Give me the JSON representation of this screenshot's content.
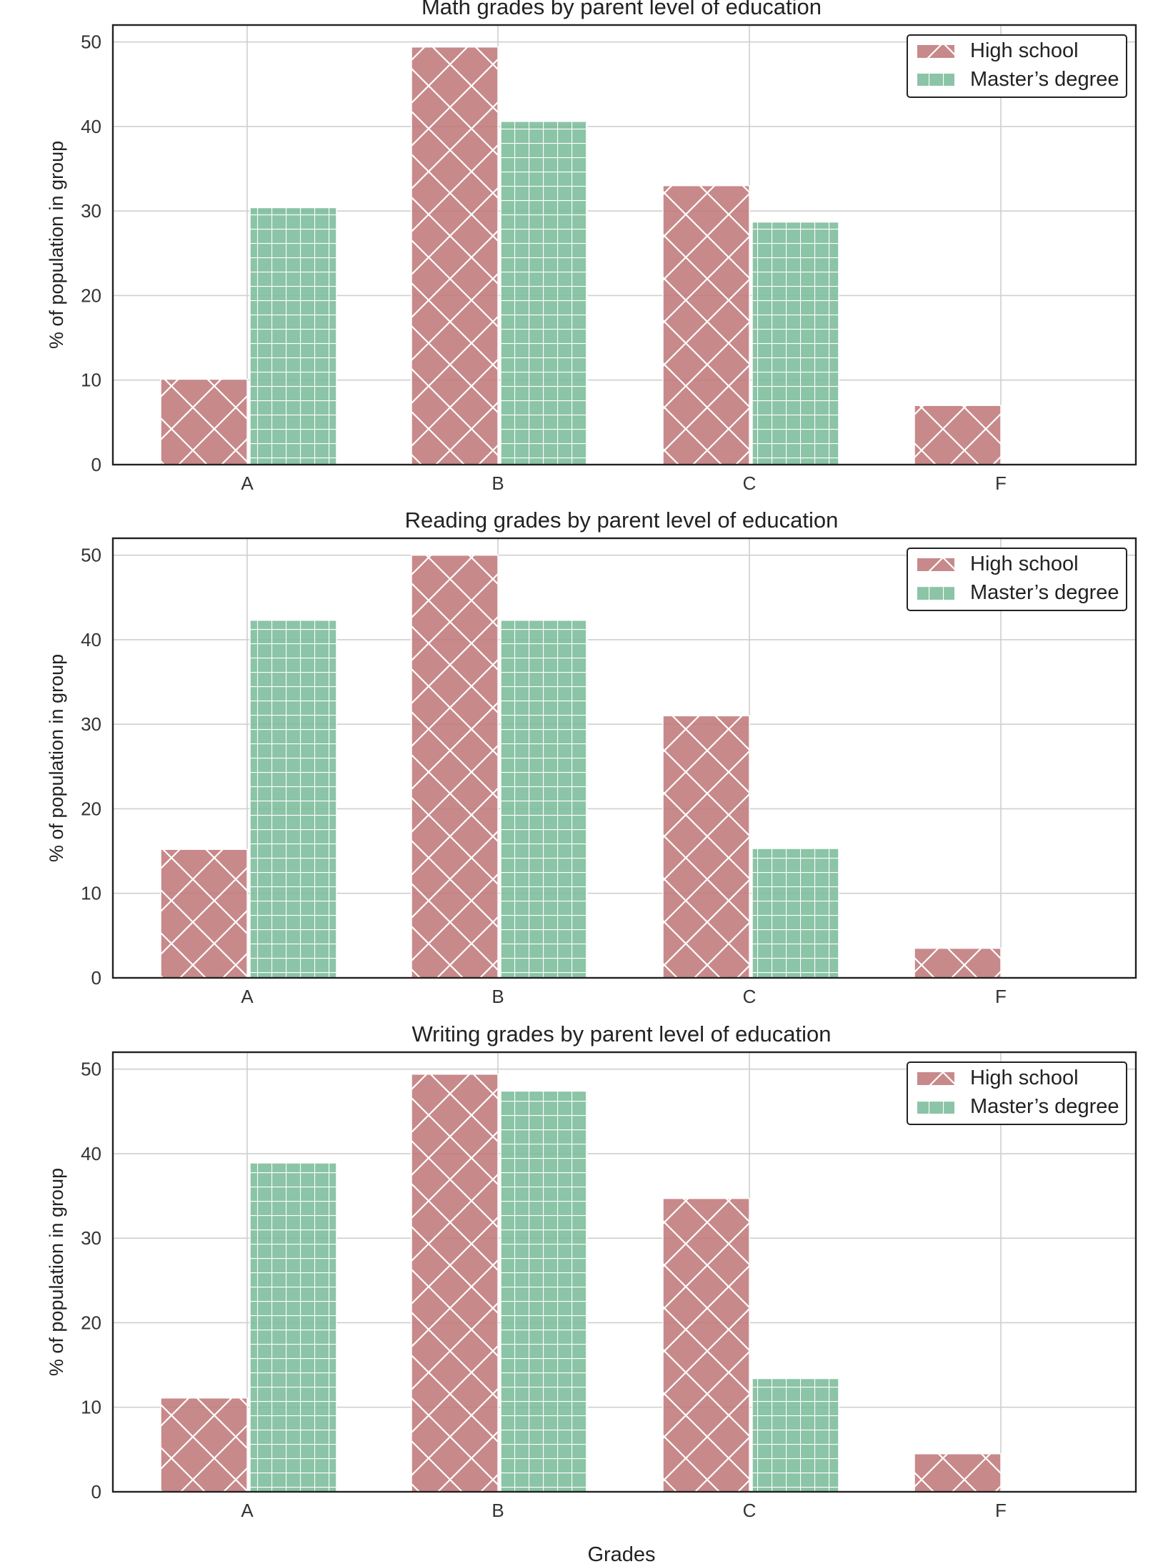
{
  "chart_data": [
    {
      "type": "bar",
      "title": "Math grades by parent level of education",
      "ylabel": "% of population in group",
      "xlabel": "",
      "categories": [
        "A",
        "B",
        "C",
        "F"
      ],
      "ylim": [
        0,
        52
      ],
      "yticks": [
        0,
        10,
        20,
        30,
        40,
        50
      ],
      "grid": true,
      "legend_position": "top-right",
      "series": [
        {
          "name": "High school",
          "values": [
            10.1,
            49.4,
            33.0,
            7.0
          ],
          "color": "#c0797a",
          "hatch": "cross-diagonal"
        },
        {
          "name": "Master’s degree",
          "values": [
            30.4,
            40.6,
            28.7,
            0
          ],
          "color": "#7bbc9a",
          "hatch": "grid"
        }
      ]
    },
    {
      "type": "bar",
      "title": "Reading grades by parent level of education",
      "ylabel": "% of population in group",
      "xlabel": "",
      "categories": [
        "A",
        "B",
        "C",
        "F"
      ],
      "ylim": [
        0,
        52
      ],
      "yticks": [
        0,
        10,
        20,
        30,
        40,
        50
      ],
      "grid": true,
      "legend_position": "top-right",
      "series": [
        {
          "name": "High school",
          "values": [
            15.2,
            50.0,
            31.0,
            3.5
          ],
          "color": "#c0797a",
          "hatch": "cross-diagonal"
        },
        {
          "name": "Master’s degree",
          "values": [
            42.3,
            42.3,
            15.3,
            0
          ],
          "color": "#7bbc9a",
          "hatch": "grid"
        }
      ]
    },
    {
      "type": "bar",
      "title": "Writing grades by parent level of education",
      "ylabel": "% of population in group",
      "xlabel": "Grades",
      "categories": [
        "A",
        "B",
        "C",
        "F"
      ],
      "ylim": [
        0,
        52
      ],
      "yticks": [
        0,
        10,
        20,
        30,
        40,
        50
      ],
      "grid": true,
      "legend_position": "top-right",
      "series": [
        {
          "name": "High school",
          "values": [
            11.1,
            49.4,
            34.7,
            4.5
          ],
          "color": "#c0797a",
          "hatch": "cross-diagonal"
        },
        {
          "name": "Master’s degree",
          "values": [
            38.9,
            47.4,
            13.4,
            0
          ],
          "color": "#7bbc9a",
          "hatch": "grid"
        }
      ]
    }
  ]
}
